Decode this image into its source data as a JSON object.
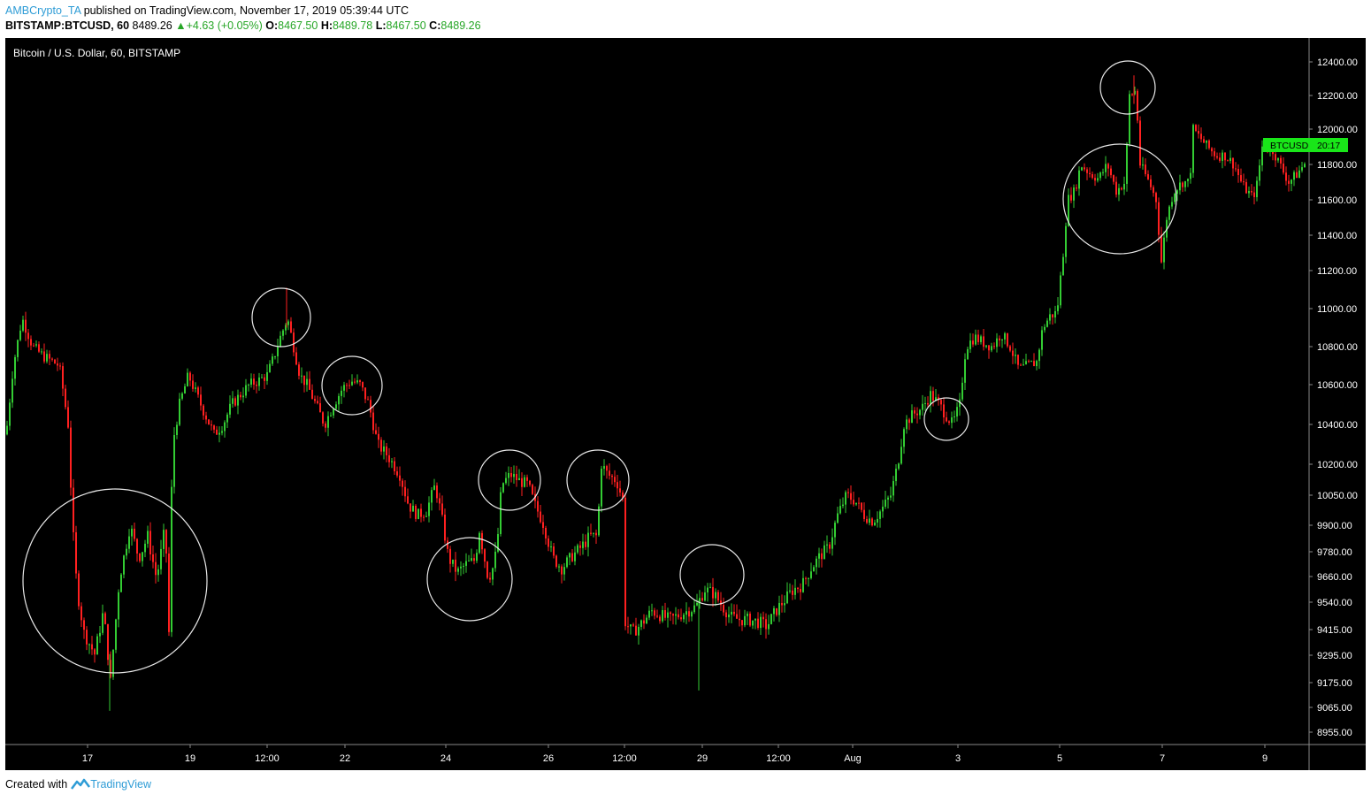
{
  "header": {
    "author": "AMBCrypto_TA",
    "published": "published on TradingView.com, November 17, 2019 05:39:44 UTC",
    "symbol": "BITSTAMP:BTCUSD, 60",
    "last": "8489.26",
    "change": "+4.63 (+0.05%)",
    "o_label": "O:",
    "o": "8467.50",
    "h_label": "H:",
    "h": "8489.78",
    "l_label": "L:",
    "l": "8467.50",
    "c_label": "C:",
    "c": "8489.26",
    "up_icon": "triangle-up-icon"
  },
  "footer": {
    "created_with": "Created with",
    "brand": "TradingView",
    "logo_icon": "tradingview-logo-icon"
  },
  "colors": {
    "background": "#000000",
    "up": "#33cc33",
    "down": "#ff2020",
    "circle": "#e8e8e8",
    "price_tag": "#19e619",
    "text": "#ffffff"
  },
  "chart_data": {
    "type": "candlestick",
    "title": "Bitcoin / U.S. Dollar, 60, BITSTAMP",
    "price_tag": {
      "symbol": "BTCUSD",
      "time_left": "20:17",
      "value": 11850
    },
    "y_ticks": [
      12400,
      12200,
      12000,
      11800,
      11600,
      11400,
      11200,
      11000,
      10800,
      10600,
      10400,
      10200,
      10050,
      9900,
      9780,
      9660,
      9540,
      9415,
      9295,
      9175,
      9065,
      8955
    ],
    "y_tick_labels": [
      "12400.00",
      "12200.00",
      "12000.00",
      "11800.00",
      "11600.00",
      "11400.00",
      "11200.00",
      "11000.00",
      "10800.00",
      "10600.00",
      "10400.00",
      "10200.00",
      "10050.00",
      "9900.00",
      "9780.00",
      "9660.00",
      "9540.00",
      "9415.00",
      "9295.00",
      "9175.00",
      "9065.00",
      "8955.00"
    ],
    "x_ticks": [
      "17",
      "19",
      "12:00",
      "22",
      "24",
      "26",
      "12:00",
      "29",
      "12:00",
      "Aug",
      "3",
      "5",
      "7",
      "9"
    ],
    "price_path": [
      [
        0,
        10350
      ],
      [
        8,
        10700
      ],
      [
        18,
        10950
      ],
      [
        30,
        10800
      ],
      [
        42,
        10750
      ],
      [
        60,
        10700
      ],
      [
        70,
        10400
      ],
      [
        75,
        9900
      ],
      [
        80,
        9600
      ],
      [
        88,
        9400
      ],
      [
        100,
        9300
      ],
      [
        110,
        9500
      ],
      [
        118,
        9180
      ],
      [
        128,
        9650
      ],
      [
        140,
        9900
      ],
      [
        150,
        9750
      ],
      [
        160,
        9850
      ],
      [
        170,
        9650
      ],
      [
        180,
        9900
      ],
      [
        184,
        9400
      ],
      [
        188,
        10300
      ],
      [
        196,
        10500
      ],
      [
        206,
        10650
      ],
      [
        215,
        10550
      ],
      [
        225,
        10450
      ],
      [
        235,
        10350
      ],
      [
        245,
        10400
      ],
      [
        255,
        10500
      ],
      [
        265,
        10550
      ],
      [
        275,
        10600
      ],
      [
        285,
        10620
      ],
      [
        295,
        10650
      ],
      [
        303,
        10750
      ],
      [
        310,
        10850
      ],
      [
        318,
        10950
      ],
      [
        325,
        10800
      ],
      [
        332,
        10650
      ],
      [
        340,
        10600
      ],
      [
        350,
        10500
      ],
      [
        360,
        10400
      ],
      [
        370,
        10500
      ],
      [
        380,
        10580
      ],
      [
        390,
        10620
      ],
      [
        400,
        10600
      ],
      [
        410,
        10500
      ],
      [
        420,
        10300
      ],
      [
        430,
        10250
      ],
      [
        445,
        10150
      ],
      [
        455,
        10000
      ],
      [
        465,
        9950
      ],
      [
        475,
        9970
      ],
      [
        485,
        10100
      ],
      [
        492,
        9950
      ],
      [
        500,
        9750
      ],
      [
        510,
        9680
      ],
      [
        520,
        9720
      ],
      [
        530,
        9740
      ],
      [
        535,
        9880
      ],
      [
        545,
        9650
      ],
      [
        550,
        9700
      ],
      [
        555,
        9800
      ],
      [
        560,
        10100
      ],
      [
        570,
        10150
      ],
      [
        580,
        10120
      ],
      [
        590,
        10100
      ],
      [
        598,
        10000
      ],
      [
        608,
        9900
      ],
      [
        618,
        9750
      ],
      [
        628,
        9700
      ],
      [
        640,
        9760
      ],
      [
        650,
        9800
      ],
      [
        660,
        9850
      ],
      [
        668,
        9850
      ],
      [
        673,
        10200
      ],
      [
        680,
        10150
      ],
      [
        690,
        10120
      ],
      [
        697,
        10030
      ],
      [
        700,
        9450
      ],
      [
        708,
        9400
      ],
      [
        720,
        9450
      ],
      [
        730,
        9500
      ],
      [
        740,
        9480
      ],
      [
        750,
        9460
      ],
      [
        760,
        9480
      ],
      [
        770,
        9500
      ],
      [
        780,
        9520
      ],
      [
        790,
        9600
      ],
      [
        800,
        9580
      ],
      [
        810,
        9520
      ],
      [
        820,
        9470
      ],
      [
        830,
        9460
      ],
      [
        840,
        9460
      ],
      [
        850,
        9450
      ],
      [
        860,
        9430
      ],
      [
        870,
        9500
      ],
      [
        880,
        9550
      ],
      [
        890,
        9600
      ],
      [
        900,
        9620
      ],
      [
        910,
        9700
      ],
      [
        920,
        9760
      ],
      [
        930,
        9800
      ],
      [
        940,
        9950
      ],
      [
        950,
        10050
      ],
      [
        960,
        10020
      ],
      [
        970,
        9950
      ],
      [
        980,
        9920
      ],
      [
        990,
        9980
      ],
      [
        1000,
        10050
      ],
      [
        1008,
        10200
      ],
      [
        1015,
        10400
      ],
      [
        1025,
        10450
      ],
      [
        1035,
        10480
      ],
      [
        1045,
        10550
      ],
      [
        1055,
        10500
      ],
      [
        1062,
        10450
      ],
      [
        1070,
        10400
      ],
      [
        1078,
        10500
      ],
      [
        1085,
        10800
      ],
      [
        1095,
        10850
      ],
      [
        1105,
        10820
      ],
      [
        1115,
        10800
      ],
      [
        1125,
        10870
      ],
      [
        1135,
        10800
      ],
      [
        1145,
        10680
      ],
      [
        1155,
        10700
      ],
      [
        1165,
        10720
      ],
      [
        1172,
        10900
      ],
      [
        1180,
        10960
      ],
      [
        1188,
        10980
      ],
      [
        1195,
        11300
      ],
      [
        1200,
        11600
      ],
      [
        1208,
        11650
      ],
      [
        1215,
        11800
      ],
      [
        1225,
        11750
      ],
      [
        1235,
        11720
      ],
      [
        1245,
        11800
      ],
      [
        1255,
        11650
      ],
      [
        1265,
        11700
      ],
      [
        1270,
        12200
      ],
      [
        1277,
        12230
      ],
      [
        1282,
        11800
      ],
      [
        1292,
        11700
      ],
      [
        1300,
        11600
      ],
      [
        1306,
        11250
      ],
      [
        1312,
        11500
      ],
      [
        1320,
        11650
      ],
      [
        1330,
        11700
      ],
      [
        1338,
        11700
      ],
      [
        1342,
        12000
      ],
      [
        1350,
        11950
      ],
      [
        1358,
        11900
      ],
      [
        1368,
        11850
      ],
      [
        1378,
        11850
      ],
      [
        1388,
        11800
      ],
      [
        1398,
        11680
      ],
      [
        1408,
        11620
      ],
      [
        1413,
        11650
      ],
      [
        1420,
        11900
      ],
      [
        1430,
        11900
      ],
      [
        1440,
        11800
      ],
      [
        1450,
        11700
      ],
      [
        1460,
        11750
      ],
      [
        1470,
        11820
      ]
    ],
    "highlight_circles": [
      {
        "x_price": "17-18 low",
        "cx": 124,
        "cy": 614,
        "rx": 104,
        "ry": 104
      },
      {
        "cx": 312,
        "cy": 316,
        "rx": 33,
        "ry": 33
      },
      {
        "cx": 392,
        "cy": 393,
        "rx": 34,
        "ry": 33
      },
      {
        "cx": 525,
        "cy": 612,
        "rx": 48,
        "ry": 47
      },
      {
        "cx": 570,
        "cy": 500,
        "rx": 35,
        "ry": 34
      },
      {
        "cx": 670,
        "cy": 500,
        "rx": 35,
        "ry": 34
      },
      {
        "cx": 799,
        "cy": 607,
        "rx": 36,
        "ry": 34
      },
      {
        "cx": 1064,
        "cy": 431,
        "rx": 25,
        "ry": 24
      },
      {
        "cx": 1260,
        "cy": 182,
        "rx": 64,
        "ry": 62
      },
      {
        "cx": 1269,
        "cy": 56,
        "rx": 31,
        "ry": 30
      }
    ]
  }
}
